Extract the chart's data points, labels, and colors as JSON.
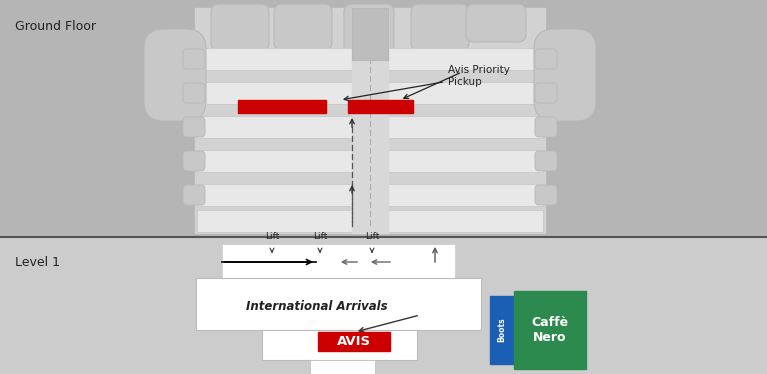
{
  "bg_top_color": "#b5b5b5",
  "bg_bottom_color": "#cccccc",
  "terminal_fill": "#d2d2d2",
  "terminal_edge": "#c0c0c0",
  "lane_fill": "#e8e8e8",
  "lane_edge": "#c8c8c8",
  "bump_fill": "#c8c8c8",
  "bump_edge": "#b8b8b8",
  "pillar_fill": "#bdbdbd",
  "red_color": "#cc0000",
  "white": "#ffffff",
  "avis_bg": "#cc0000",
  "boots_bg": "#1a5fb4",
  "caffe_bg": "#2d8a4e",
  "separator_color": "#555555",
  "arrow_color": "#333333",
  "text_color": "#222222",
  "ground_floor_label": "Ground Floor",
  "level1_label": "Level 1",
  "intl_arrivals_label": "International Arrivals",
  "avis_priority_label": "Avis Priority\nPickup",
  "avis_text": "AVIS",
  "boots_text": "Boots",
  "caffe_text": "Caffè\nNero",
  "lift_labels": [
    "Lift",
    "Lift",
    "Lift"
  ],
  "figsize": [
    7.67,
    3.74
  ],
  "dpi": 100
}
